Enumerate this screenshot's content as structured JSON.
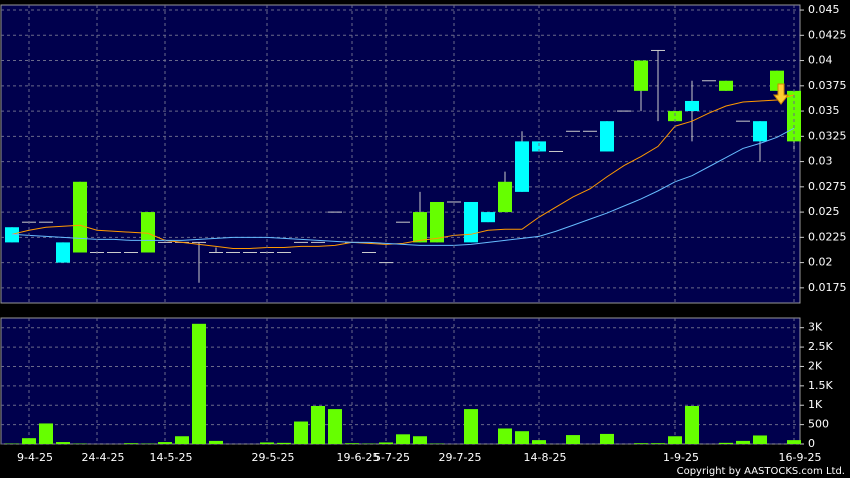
{
  "chart_data": [
    {
      "type": "candlestick",
      "open": [
        0.022,
        0.024,
        0.024,
        0.02,
        0.028,
        0.021,
        0.021,
        0.021,
        0.025,
        0.022,
        0.022,
        0.022,
        0.021,
        0.021,
        0.021,
        0.021,
        0.021,
        0.022,
        0.022,
        0.025,
        0.022,
        0.021,
        0.02,
        0.024,
        0.025,
        0.026,
        0.026,
        0.022,
        0.024,
        0.028,
        0.027,
        0.031,
        0.031,
        0.033,
        0.033,
        0.031,
        0.035,
        0.04,
        0.041,
        0.035,
        0.035,
        0.038,
        0.038,
        0.034,
        0.032,
        0.039,
        0.037
      ],
      "high": [
        0.0235,
        0.024,
        0.024,
        0.022,
        0.028,
        0.021,
        0.021,
        0.021,
        0.025,
        0.022,
        0.022,
        0.022,
        0.0215,
        0.021,
        0.021,
        0.021,
        0.021,
        0.022,
        0.022,
        0.025,
        0.022,
        0.021,
        0.02,
        0.024,
        0.027,
        0.026,
        0.026,
        0.026,
        0.025,
        0.029,
        0.033,
        0.032,
        0.031,
        0.033,
        0.033,
        0.034,
        0.035,
        0.04,
        0.041,
        0.035,
        0.038,
        0.038,
        0.038,
        0.034,
        0.034,
        0.039,
        0.037
      ],
      "low": [
        0.022,
        0.024,
        0.024,
        0.02,
        0.021,
        0.021,
        0.021,
        0.021,
        0.021,
        0.022,
        0.022,
        0.018,
        0.021,
        0.021,
        0.021,
        0.021,
        0.021,
        0.022,
        0.022,
        0.025,
        0.022,
        0.021,
        0.02,
        0.024,
        0.022,
        0.022,
        0.026,
        0.022,
        0.024,
        0.025,
        0.027,
        0.031,
        0.031,
        0.033,
        0.033,
        0.031,
        0.035,
        0.035,
        0.034,
        0.034,
        0.032,
        0.038,
        0.037,
        0.034,
        0.03,
        0.037,
        0.031
      ],
      "close": [
        0.0235,
        0.024,
        0.024,
        0.022,
        0.021,
        0.021,
        0.021,
        0.021,
        0.021,
        0.022,
        0.022,
        0.022,
        0.021,
        0.021,
        0.021,
        0.021,
        0.021,
        0.022,
        0.022,
        0.025,
        0.022,
        0.021,
        0.02,
        0.024,
        0.022,
        0.022,
        0.026,
        0.026,
        0.025,
        0.025,
        0.032,
        0.032,
        0.031,
        0.033,
        0.033,
        0.034,
        0.035,
        0.037,
        0.041,
        0.034,
        0.036,
        0.038,
        0.037,
        0.034,
        0.034,
        0.037,
        0.032
      ],
      "up_color": "#00ffff",
      "down_color": "#66ff00",
      "flat_color": "#cccccc",
      "ma_lines": [
        {
          "color": "#ff9900",
          "values": [
            0.0228,
            0.0232,
            0.0235,
            0.0236,
            0.0237,
            0.0232,
            0.0231,
            0.023,
            0.0229,
            0.0222,
            0.022,
            0.0218,
            0.0216,
            0.0214,
            0.0214,
            0.0215,
            0.0215,
            0.0216,
            0.0216,
            0.0217,
            0.022,
            0.0219,
            0.0218,
            0.0219,
            0.0222,
            0.0224,
            0.0227,
            0.0228,
            0.0232,
            0.0233,
            0.0233,
            0.0245,
            0.0255,
            0.0265,
            0.0273,
            0.0285,
            0.0296,
            0.0305,
            0.0315,
            0.0335,
            0.034,
            0.0348,
            0.0355,
            0.0359,
            0.036,
            0.0361,
            0.0366
          ]
        },
        {
          "color": "#66bbff",
          "values": [
            0.0228,
            0.0227,
            0.0226,
            0.0225,
            0.0224,
            0.0223,
            0.0223,
            0.0222,
            0.0222,
            0.0222,
            0.0222,
            0.0223,
            0.0224,
            0.0225,
            0.0225,
            0.0225,
            0.0224,
            0.0223,
            0.0222,
            0.0221,
            0.022,
            0.022,
            0.0219,
            0.0218,
            0.0217,
            0.0217,
            0.0217,
            0.0218,
            0.022,
            0.0222,
            0.0224,
            0.0226,
            0.0231,
            0.0237,
            0.0243,
            0.0249,
            0.0256,
            0.0263,
            0.0271,
            0.028,
            0.0286,
            0.0295,
            0.0304,
            0.0313,
            0.0318,
            0.0324,
            0.0333
          ]
        }
      ],
      "ylim": [
        0.016,
        0.0455
      ],
      "yticks": [
        0.0175,
        0.02,
        0.0225,
        0.025,
        0.0275,
        0.03,
        0.0325,
        0.035,
        0.0375,
        0.04,
        0.0425,
        0.045
      ],
      "grid": true
    },
    {
      "type": "bar",
      "categories": [
        null,
        "9-4-25",
        null,
        null,
        null,
        "24-4-25",
        null,
        null,
        null,
        "14-5-25",
        null,
        null,
        null,
        null,
        null,
        "29-5-25",
        null,
        null,
        null,
        null,
        "19-6-25",
        null,
        "5-7-25",
        null,
        null,
        null,
        "29-7-25",
        null,
        null,
        null,
        null,
        "14-8-25",
        null,
        null,
        null,
        null,
        null,
        null,
        null,
        "1-9-25",
        null,
        null,
        null,
        null,
        null,
        null,
        "16-9-25"
      ],
      "values": [
        10,
        150,
        530,
        50,
        10,
        0,
        0,
        20,
        10,
        50,
        200,
        3100,
        80,
        0,
        0,
        40,
        30,
        580,
        980,
        900,
        20,
        10,
        40,
        250,
        200,
        10,
        0,
        900,
        0,
        400,
        330,
        100,
        0,
        230,
        0,
        260,
        0,
        20,
        20,
        200,
        980,
        0,
        30,
        80,
        220,
        0,
        100
      ],
      "color": "#66ff00",
      "ylim": [
        0,
        3250
      ],
      "yticks": [
        0,
        500,
        {
          "value": 1000,
          "label": "1K"
        },
        {
          "value": 1500,
          "label": "1.5K"
        },
        {
          "value": 2000,
          "label": "2K"
        },
        {
          "value": 2500,
          "label": "2.5K"
        },
        {
          "value": 3000,
          "label": "3K"
        }
      ],
      "grid": true
    }
  ],
  "footer": "Copyright by AASTOCKS.com Ltd."
}
